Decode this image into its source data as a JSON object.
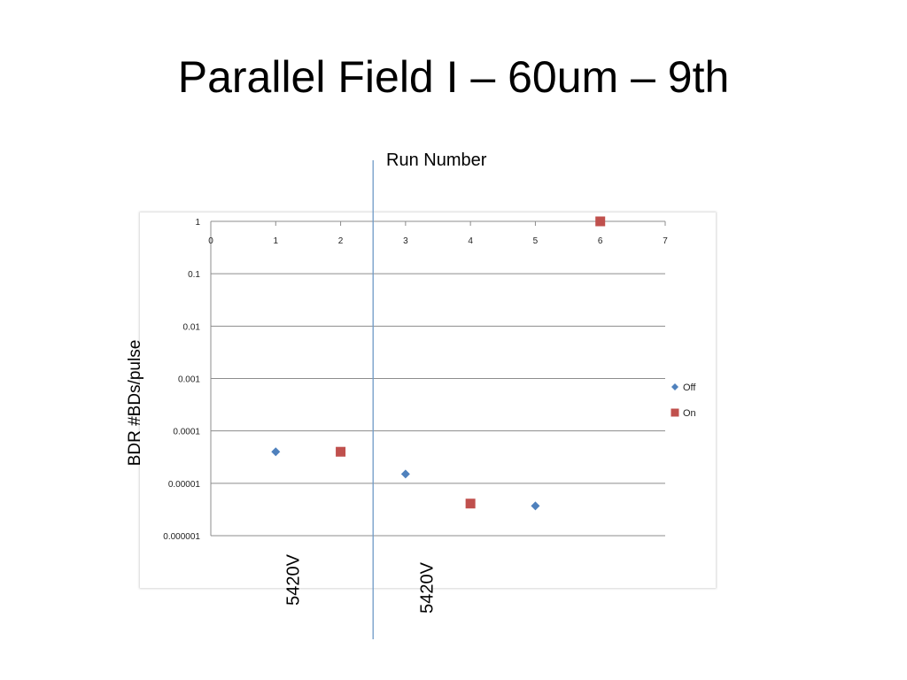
{
  "slide": {
    "title": "Parallel Field I – 60um – 9th",
    "run_number_label": "Run Number",
    "annotations": [
      {
        "text": "5420V"
      },
      {
        "text": "5420V"
      }
    ],
    "separator_color": "#6f9ac7"
  },
  "chart_data": {
    "type": "scatter",
    "xlabel": "Run Number",
    "ylabel": "BDR #BDs/pulse",
    "y_scale": "log",
    "xlim": [
      0,
      7
    ],
    "ylim": [
      1e-06,
      1
    ],
    "x_ticks": [
      "0",
      "1",
      "2",
      "3",
      "4",
      "5",
      "6",
      "7"
    ],
    "y_ticks": [
      "1",
      "0.1",
      "0.01",
      "0.001",
      "0.0001",
      "0.00001",
      "0.000001"
    ],
    "x_axis_position": "top",
    "grid": "horizontal",
    "legend_position": "right",
    "series": [
      {
        "name": "Off",
        "marker": "diamond",
        "color": "#4f81bd",
        "points": [
          {
            "x": 1,
            "y": 4e-05
          },
          {
            "x": 3,
            "y": 1.5e-05
          },
          {
            "x": 5,
            "y": 3.7e-06
          }
        ]
      },
      {
        "name": "On",
        "marker": "square",
        "color": "#c0504d",
        "points": [
          {
            "x": 2,
            "y": 4e-05
          },
          {
            "x": 4,
            "y": 4.1e-06
          },
          {
            "x": 6,
            "y": 1
          }
        ]
      }
    ],
    "separator_x": 2.5
  }
}
